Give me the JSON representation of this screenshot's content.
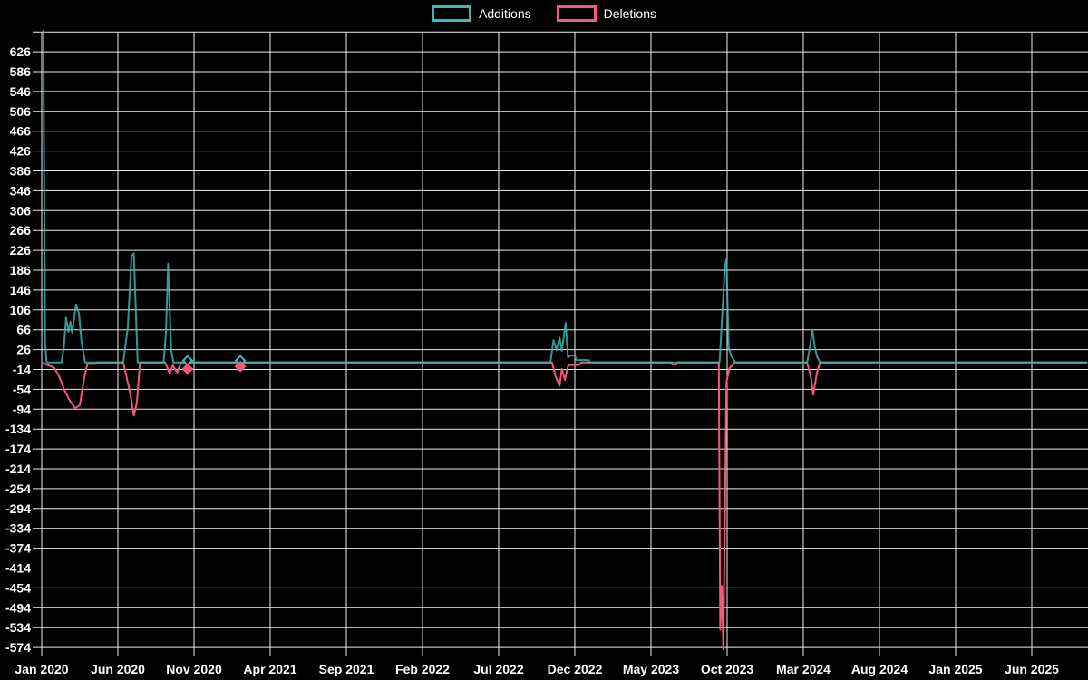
{
  "legend": {
    "items": [
      {
        "label": "Additions",
        "color": "#3cb8b8"
      },
      {
        "label": "Deletions",
        "color": "#f2587b"
      }
    ]
  },
  "chart_data": {
    "type": "line",
    "title": "",
    "xlabel": "",
    "ylabel": "",
    "background_color": "#000000",
    "grid": true,
    "gridline_color": "#ffffff",
    "axis_text_color": "#ffffff",
    "legend_position": "top-center",
    "x_unit": "months since Jan 2020",
    "x_domain_months": [
      0,
      68.6
    ],
    "y_domain": [
      -574,
      666
    ],
    "y_tick_step": 40,
    "y_tick_labels": [
      626,
      586,
      546,
      506,
      466,
      426,
      386,
      346,
      306,
      266,
      226,
      186,
      146,
      106,
      66,
      26,
      -14,
      -54,
      -94,
      -134,
      -174,
      -214,
      -254,
      -294,
      -334,
      -374,
      -414,
      -454,
      -494,
      -534,
      -574
    ],
    "x_tick_labels": [
      "Jan 2020",
      "Jun 2020",
      "Nov 2020",
      "Apr 2021",
      "Sep 2021",
      "Feb 2022",
      "Jul 2022",
      "Dec 2022",
      "May 2023",
      "Oct 2023",
      "Mar 2024",
      "Aug 2024",
      "Jan 2025",
      "Jun 2025"
    ],
    "x_tick_months": [
      0,
      5,
      10,
      15,
      20,
      25,
      30,
      35,
      40,
      45,
      50,
      55,
      60,
      65
    ],
    "series": [
      {
        "name": "Additions",
        "color": "#3cb8b8",
        "points": [
          [
            0,
            1300
          ],
          [
            0.22,
            40
          ],
          [
            0.32,
            0
          ],
          [
            1.3,
            0
          ],
          [
            1.45,
            30
          ],
          [
            1.6,
            90
          ],
          [
            1.75,
            62
          ],
          [
            1.88,
            82
          ],
          [
            2.0,
            60
          ],
          [
            2.25,
            117
          ],
          [
            2.45,
            98
          ],
          [
            2.6,
            45
          ],
          [
            2.85,
            0
          ],
          [
            5.35,
            0
          ],
          [
            5.65,
            70
          ],
          [
            5.9,
            215
          ],
          [
            6.05,
            220
          ],
          [
            6.3,
            0
          ],
          [
            8.0,
            0
          ],
          [
            8.15,
            55
          ],
          [
            8.3,
            199
          ],
          [
            8.42,
            90
          ],
          [
            8.5,
            25
          ],
          [
            8.65,
            0
          ],
          [
            33.4,
            0
          ],
          [
            33.6,
            45
          ],
          [
            33.8,
            25
          ],
          [
            34.0,
            50
          ],
          [
            34.15,
            24
          ],
          [
            34.4,
            80
          ],
          [
            34.55,
            10
          ],
          [
            34.7,
            14
          ],
          [
            35.0,
            14
          ],
          [
            35.1,
            5
          ],
          [
            35.9,
            5
          ],
          [
            36.0,
            0
          ],
          [
            44.5,
            0
          ],
          [
            44.7,
            110
          ],
          [
            44.85,
            195
          ],
          [
            44.95,
            208
          ],
          [
            45.1,
            32
          ],
          [
            45.25,
            14
          ],
          [
            45.55,
            0
          ],
          [
            50.25,
            0
          ],
          [
            50.45,
            35
          ],
          [
            50.6,
            66
          ],
          [
            50.75,
            32
          ],
          [
            50.9,
            12
          ],
          [
            51.1,
            0
          ],
          [
            68.6,
            0
          ]
        ]
      },
      {
        "name": "Deletions",
        "color": "#f2587b",
        "points": [
          [
            0,
            0
          ],
          [
            0.15,
            -2
          ],
          [
            0.8,
            -10
          ],
          [
            1.1,
            -25
          ],
          [
            1.5,
            -56
          ],
          [
            1.9,
            -80
          ],
          [
            2.2,
            -92
          ],
          [
            2.5,
            -86
          ],
          [
            2.8,
            -30
          ],
          [
            3.0,
            -3
          ],
          [
            3.55,
            -3
          ],
          [
            3.65,
            0
          ],
          [
            5.35,
            0
          ],
          [
            5.8,
            -60
          ],
          [
            6.05,
            -107
          ],
          [
            6.25,
            -80
          ],
          [
            6.45,
            0
          ],
          [
            8.1,
            0
          ],
          [
            8.4,
            -22
          ],
          [
            8.6,
            -6
          ],
          [
            8.9,
            -20
          ],
          [
            9.15,
            0
          ],
          [
            33.5,
            0
          ],
          [
            33.75,
            -29
          ],
          [
            34.0,
            -47
          ],
          [
            34.15,
            -13
          ],
          [
            34.35,
            -35
          ],
          [
            34.55,
            -8
          ],
          [
            34.65,
            -5
          ],
          [
            35.3,
            -5
          ],
          [
            35.4,
            0
          ],
          [
            41.3,
            0
          ],
          [
            41.4,
            -4
          ],
          [
            41.65,
            -4
          ],
          [
            41.75,
            0
          ],
          [
            44.45,
            0
          ],
          [
            44.55,
            -538
          ],
          [
            44.65,
            -450
          ],
          [
            44.75,
            -578
          ],
          [
            44.95,
            -40
          ],
          [
            45.15,
            -12
          ],
          [
            45.5,
            0
          ],
          [
            50.25,
            0
          ],
          [
            50.5,
            -30
          ],
          [
            50.65,
            -65
          ],
          [
            50.9,
            -20
          ],
          [
            51.1,
            0
          ],
          [
            68.6,
            0
          ]
        ]
      }
    ],
    "isolated_point_markers": [
      {
        "series": "Additions",
        "month": 9.58,
        "value": 4
      },
      {
        "series": "Deletions",
        "month": 9.58,
        "value": -13
      },
      {
        "series": "Additions",
        "month": 13.04,
        "value": 4
      },
      {
        "series": "Deletions",
        "month": 13.04,
        "value": -8
      }
    ]
  }
}
